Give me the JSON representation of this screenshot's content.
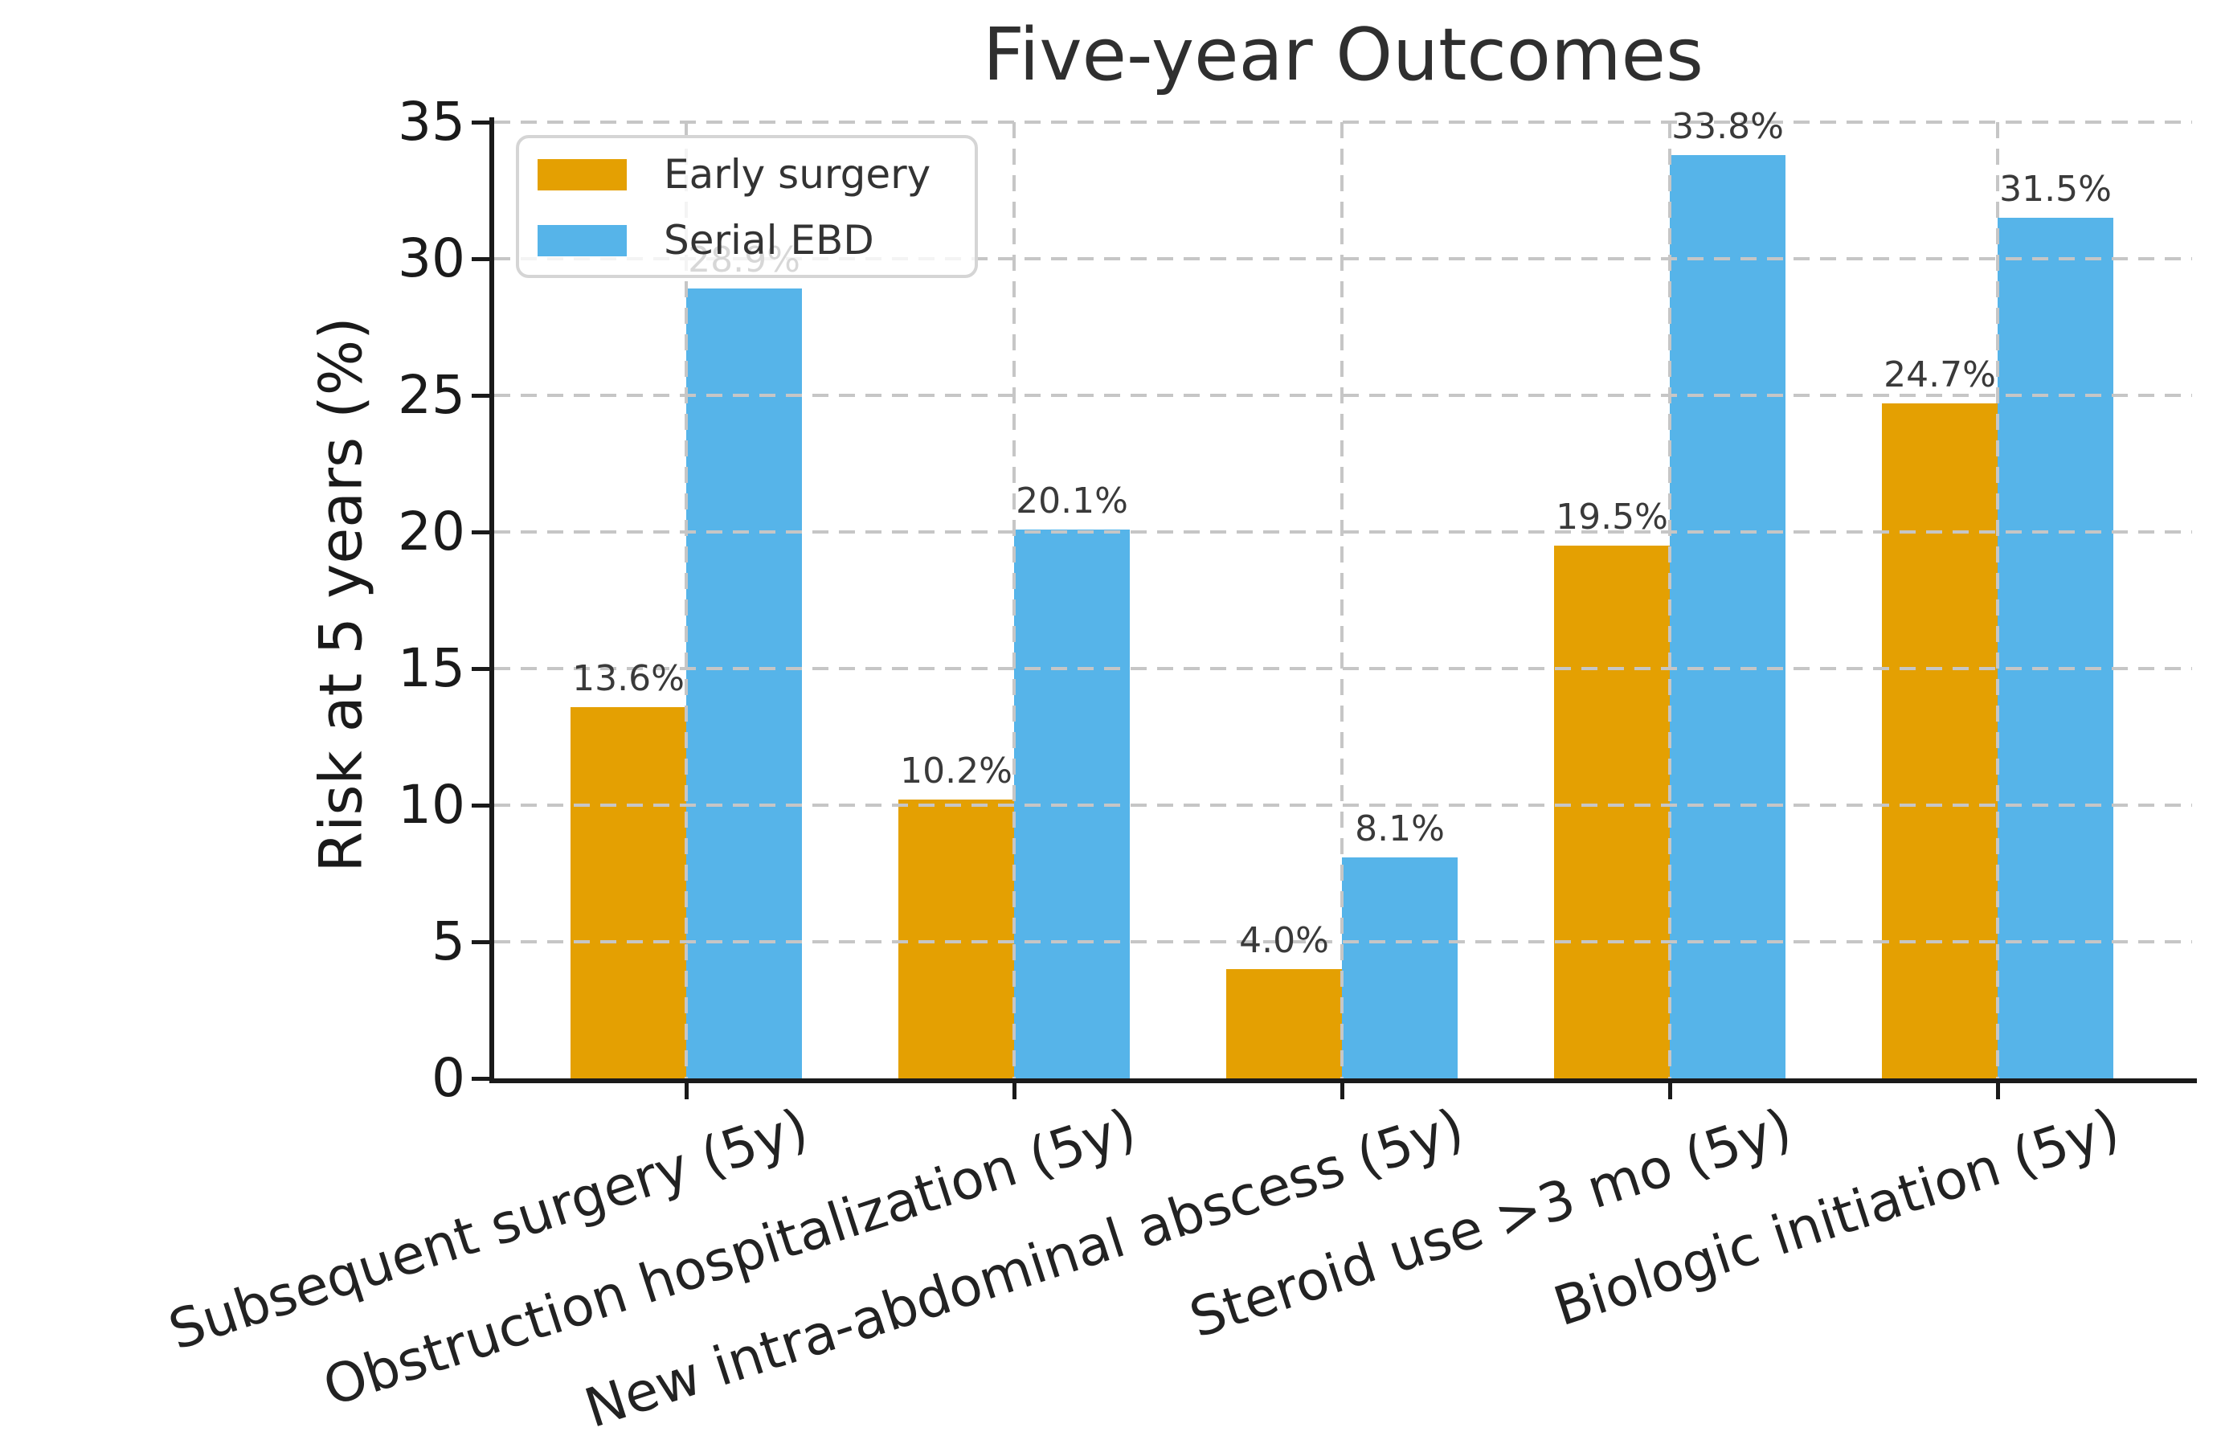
{
  "chart_data": {
    "type": "bar",
    "title": "Five-year Outcomes",
    "ylabel": "Risk at 5 years (%)",
    "xlabel": "",
    "categories": [
      "Subsequent surgery (5y)",
      "Obstruction hospitalization (5y)",
      "New intra-abdominal abscess (5y)",
      "Steroid use >3 mo (5y)",
      "Biologic initiation (5y)"
    ],
    "series": [
      {
        "name": "Early surgery",
        "color": "#E4A002",
        "values": [
          13.6,
          10.2,
          4.0,
          19.5,
          24.7
        ],
        "value_labels": [
          "13.6%",
          "10.2%",
          "4.0%",
          "19.5%",
          "24.7%"
        ]
      },
      {
        "name": "Serial EBD",
        "color": "#56B4E9",
        "values": [
          28.9,
          20.1,
          8.1,
          33.8,
          31.5
        ],
        "value_labels": [
          "28.9%",
          "20.1%",
          "8.1%",
          "33.8%",
          "31.5%"
        ]
      }
    ],
    "ylim": [
      0,
      35
    ],
    "yticks": [
      0,
      5,
      10,
      15,
      20,
      25,
      30,
      35
    ],
    "ytick_labels": [
      "0",
      "5",
      "10",
      "15",
      "20",
      "25",
      "30",
      "35"
    ],
    "grid": true,
    "grid_style": "dashed",
    "legend_position": "upper left",
    "colors": {
      "background": "#ffffff",
      "grid": "#c6c6c6",
      "spine": "#1a1a1a",
      "title_text": "#2f2f2f",
      "tick_text": "#1a1a1a",
      "value_label_text": "#3a3a3a",
      "legend_text": "#333333",
      "legend_border": "#d5d5d5"
    }
  }
}
